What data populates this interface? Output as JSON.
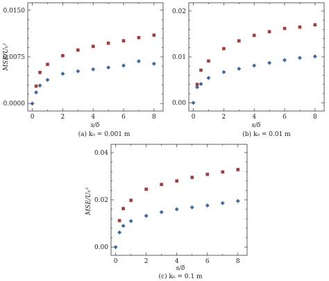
{
  "chart_data": [
    {
      "type": "scatter",
      "caption": "(a) k₀ = 0.001 m",
      "xlabel": "s/δ",
      "ylabel": "MSE/Uₕ²",
      "xlim": [
        -0.3,
        8.6
      ],
      "ylim": [
        -0.0012,
        0.0162
      ],
      "x_ticks": [
        0,
        2,
        4,
        6,
        8
      ],
      "y_ticks": [
        0.0,
        0.0075,
        0.015
      ],
      "y_tick_labels": [
        "0.0000",
        "0.0075",
        "0.0150"
      ],
      "grid": false,
      "series": [
        {
          "marker": "square",
          "color": "#a83a3a",
          "x": [
            0.25,
            0.5,
            1,
            2,
            3,
            4,
            5,
            6,
            7,
            8
          ],
          "y": [
            0.0028,
            0.005,
            0.0063,
            0.0077,
            0.0086,
            0.0092,
            0.0097,
            0.0101,
            0.0106,
            0.011
          ]
        },
        {
          "marker": "diamond",
          "color": "#3e6aa8",
          "x": [
            0,
            0.25,
            0.5,
            1,
            2,
            3,
            4,
            5,
            6,
            7,
            8
          ],
          "y": [
            0.0,
            0.0018,
            0.0029,
            0.0038,
            0.0048,
            0.0052,
            0.0055,
            0.0058,
            0.0061,
            0.0068,
            0.0064
          ]
        }
      ]
    },
    {
      "type": "scatter",
      "caption": "(b) k₀ = 0.01 m",
      "xlabel": "s/δ",
      "ylabel": "",
      "xlim": [
        -0.3,
        8.6
      ],
      "ylim": [
        -0.0018,
        0.0218
      ],
      "x_ticks": [
        0,
        2,
        4,
        6,
        8
      ],
      "y_ticks": [
        0.0,
        0.01,
        0.02
      ],
      "y_tick_labels": [
        "0.00",
        "0.01",
        "0.02"
      ],
      "grid": false,
      "series": [
        {
          "marker": "square",
          "color": "#a83a3a",
          "x": [
            0.25,
            0.5,
            1,
            2,
            3,
            4,
            5,
            6,
            7,
            8
          ],
          "y": [
            0.004,
            0.0071,
            0.0091,
            0.0118,
            0.0135,
            0.0147,
            0.0155,
            0.0162,
            0.0165,
            0.017
          ]
        },
        {
          "marker": "diamond",
          "color": "#3e6aa8",
          "x": [
            0,
            0.25,
            0.5,
            1,
            2,
            3,
            4,
            5,
            6,
            7,
            8
          ],
          "y": [
            0.0,
            0.0034,
            0.0041,
            0.0054,
            0.0067,
            0.0074,
            0.0081,
            0.0087,
            0.0093,
            0.0098,
            0.0101
          ]
        }
      ]
    },
    {
      "type": "scatter",
      "caption": "(c) k₀ = 0.1 m",
      "xlabel": "s/δ",
      "ylabel": "MSE/Uₕ²",
      "xlim": [
        -0.3,
        8.6
      ],
      "ylim": [
        -0.0035,
        0.0435
      ],
      "x_ticks": [
        0,
        2,
        4,
        6,
        8
      ],
      "y_ticks": [
        0.0,
        0.02,
        0.04
      ],
      "y_tick_labels": [
        "0.00",
        "0.02",
        "0.04"
      ],
      "grid": false,
      "series": [
        {
          "marker": "square",
          "color": "#a83a3a",
          "x": [
            0.25,
            0.5,
            1,
            2,
            3,
            4,
            5,
            6,
            7,
            8
          ],
          "y": [
            0.0112,
            0.0163,
            0.0198,
            0.0245,
            0.0265,
            0.028,
            0.0295,
            0.0308,
            0.0318,
            0.0328
          ]
        },
        {
          "marker": "diamond",
          "color": "#3e6aa8",
          "x": [
            0,
            0.25,
            0.5,
            1,
            2,
            3,
            4,
            5,
            6,
            7,
            8
          ],
          "y": [
            0.0,
            0.0062,
            0.009,
            0.011,
            0.0132,
            0.0148,
            0.016,
            0.0168,
            0.0176,
            0.0186,
            0.0195
          ]
        }
      ]
    }
  ]
}
